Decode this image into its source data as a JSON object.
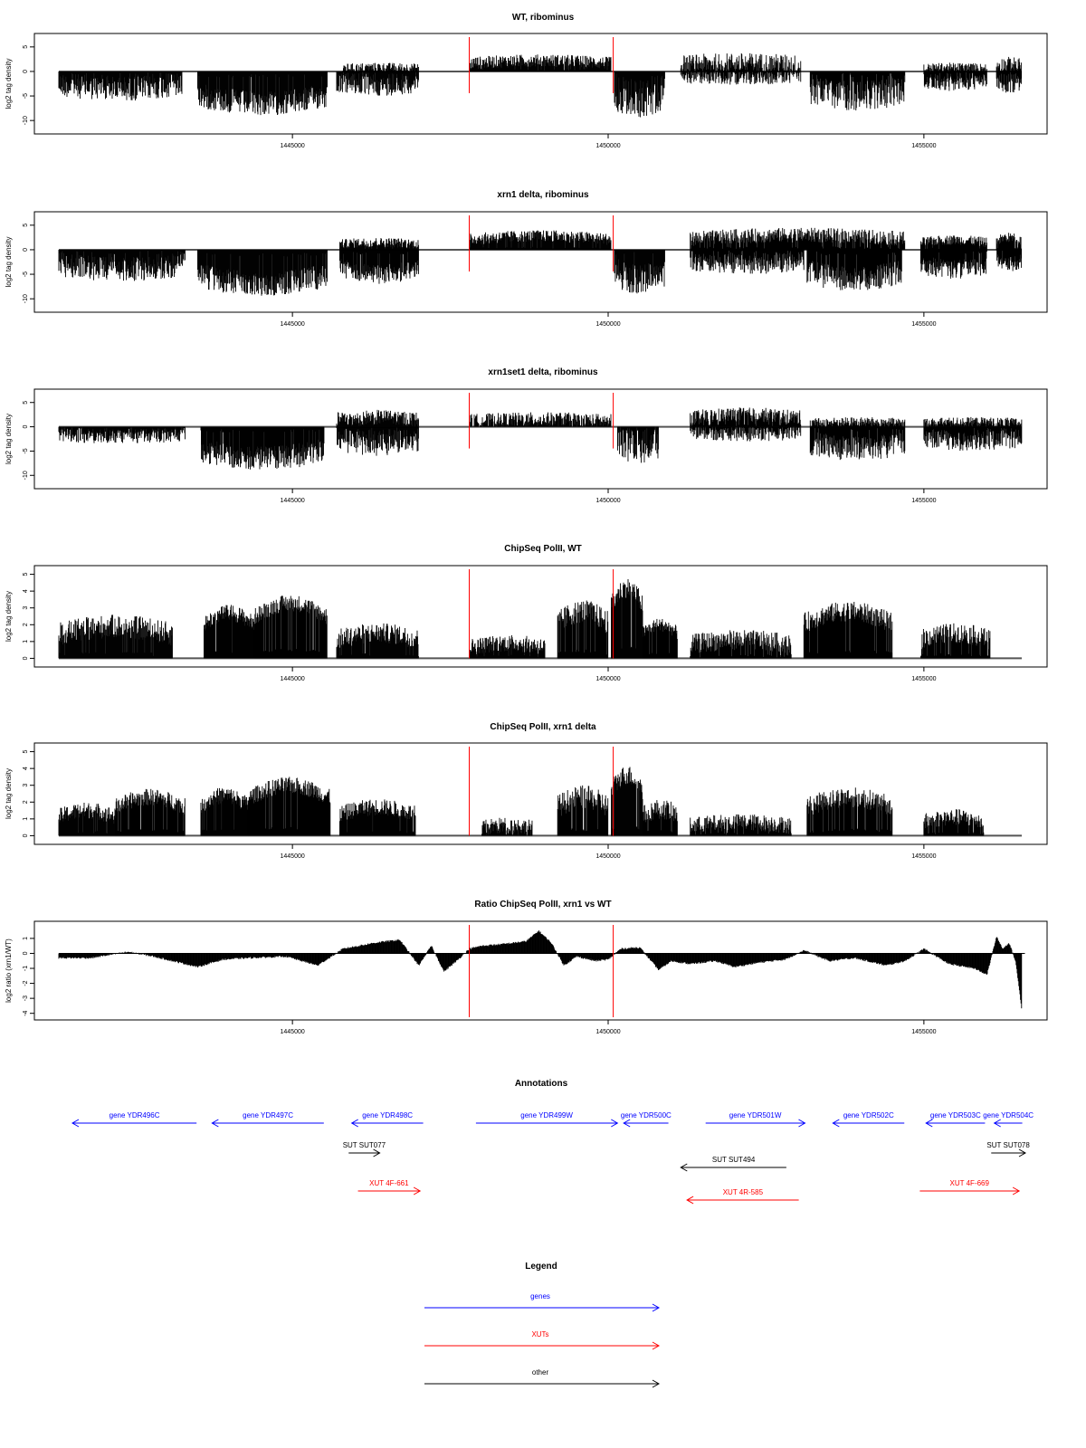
{
  "chart_data": [
    {
      "type": "bar",
      "title": "WT, ribominus",
      "ylabel": "log2 tag density",
      "xlim": [
        1441200,
        1456650
      ],
      "ylim": [
        -12,
        7
      ],
      "yticks": [
        5,
        0,
        -5,
        -10
      ],
      "xticks": [
        1445000,
        1450000,
        1455000
      ],
      "markers": [
        1447800,
        1450080
      ],
      "segments": [
        {
          "x": [
            1441300,
            1443250
          ],
          "sign": -1,
          "mean": 3.5,
          "spread": 2.5
        },
        {
          "x": [
            1443500,
            1445550
          ],
          "sign": -1,
          "mean": 6.5,
          "spread": 2.5
        },
        {
          "x": [
            1445700,
            1447000
          ],
          "sign": -1,
          "mean": 3.0,
          "spread": 2.0
        },
        {
          "x": [
            1445800,
            1447000
          ],
          "sign": 1,
          "mean": 0.8,
          "spread": 1.0
        },
        {
          "x": [
            1447800,
            1450050
          ],
          "sign": 1,
          "mean": 2.2,
          "spread": 1.3
        },
        {
          "x": [
            1450100,
            1450900
          ],
          "sign": -1,
          "mean": 5.5,
          "spread": 4.0
        },
        {
          "x": [
            1451150,
            1453050
          ],
          "sign": 1,
          "mean": 1.8,
          "spread": 2.0
        },
        {
          "x": [
            1451150,
            1453050
          ],
          "sign": -1,
          "mean": 1.2,
          "spread": 1.5
        },
        {
          "x": [
            1453200,
            1454700
          ],
          "sign": -1,
          "mean": 5.0,
          "spread": 3.0
        },
        {
          "x": [
            1455000,
            1456000
          ],
          "sign": -1,
          "mean": 2.5,
          "spread": 1.5
        },
        {
          "x": [
            1455000,
            1456000
          ],
          "sign": 1,
          "mean": 0.8,
          "spread": 1.0
        },
        {
          "x": [
            1456150,
            1456550
          ],
          "sign": 1,
          "mean": 1.5,
          "spread": 1.5
        },
        {
          "x": [
            1456150,
            1456550
          ],
          "sign": -1,
          "mean": 2.5,
          "spread": 2.0
        }
      ]
    },
    {
      "type": "bar",
      "title": "xrn1 delta, ribominus",
      "ylabel": "log2 tag density",
      "xlim": [
        1441200,
        1456650
      ],
      "ylim": [
        -12,
        7
      ],
      "yticks": [
        5,
        0,
        -5,
        -10
      ],
      "xticks": [
        1445000,
        1450000,
        1455000
      ],
      "markers": [
        1447800,
        1450080
      ],
      "segments": [
        {
          "x": [
            1441300,
            1443300
          ],
          "sign": -1,
          "mean": 4.0,
          "spread": 2.5
        },
        {
          "x": [
            1443500,
            1445550
          ],
          "sign": -1,
          "mean": 7.0,
          "spread": 2.5
        },
        {
          "x": [
            1445750,
            1447000
          ],
          "sign": -1,
          "mean": 5.0,
          "spread": 2.0
        },
        {
          "x": [
            1445750,
            1447000
          ],
          "sign": 1,
          "mean": 1.5,
          "spread": 1.0
        },
        {
          "x": [
            1447800,
            1450050
          ],
          "sign": 1,
          "mean": 2.8,
          "spread": 1.2
        },
        {
          "x": [
            1450100,
            1450900
          ],
          "sign": -1,
          "mean": 6.0,
          "spread": 3.0
        },
        {
          "x": [
            1451300,
            1454700
          ],
          "sign": 1,
          "mean": 3.0,
          "spread": 1.5
        },
        {
          "x": [
            1451300,
            1453100
          ],
          "sign": -1,
          "mean": 3.0,
          "spread": 2.0
        },
        {
          "x": [
            1453150,
            1454650
          ],
          "sign": -1,
          "mean": 6.0,
          "spread": 2.5
        },
        {
          "x": [
            1454950,
            1456000
          ],
          "sign": 1,
          "mean": 2.0,
          "spread": 1.0
        },
        {
          "x": [
            1454950,
            1456000
          ],
          "sign": -1,
          "mean": 4.0,
          "spread": 2.0
        },
        {
          "x": [
            1456150,
            1456550
          ],
          "sign": 1,
          "mean": 2.5,
          "spread": 1.0
        },
        {
          "x": [
            1456150,
            1456550
          ],
          "sign": -1,
          "mean": 3.0,
          "spread": 1.5
        }
      ]
    },
    {
      "type": "bar",
      "title": "xrn1set1 delta, ribominus",
      "ylabel": "log2 tag density",
      "xlim": [
        1441200,
        1456650
      ],
      "ylim": [
        -12,
        7
      ],
      "yticks": [
        5,
        0,
        -5,
        -10
      ],
      "xticks": [
        1445000,
        1450000,
        1455000
      ],
      "markers": [
        1447800,
        1450080
      ],
      "segments": [
        {
          "x": [
            1441300,
            1443300
          ],
          "sign": -1,
          "mean": 2.0,
          "spread": 1.5
        },
        {
          "x": [
            1443550,
            1445500
          ],
          "sign": -1,
          "mean": 6.5,
          "spread": 2.5
        },
        {
          "x": [
            1445700,
            1447000
          ],
          "sign": -1,
          "mean": 3.5,
          "spread": 2.5
        },
        {
          "x": [
            1445700,
            1447000
          ],
          "sign": 1,
          "mean": 2.0,
          "spread": 1.5
        },
        {
          "x": [
            1447800,
            1450050
          ],
          "sign": 1,
          "mean": 1.5,
          "spread": 1.5
        },
        {
          "x": [
            1450150,
            1450800
          ],
          "sign": -1,
          "mean": 4.0,
          "spread": 3.5
        },
        {
          "x": [
            1451300,
            1453050
          ],
          "sign": 1,
          "mean": 2.5,
          "spread": 1.5
        },
        {
          "x": [
            1451300,
            1453050
          ],
          "sign": -1,
          "mean": 1.5,
          "spread": 1.5
        },
        {
          "x": [
            1453200,
            1454700
          ],
          "sign": -1,
          "mean": 4.5,
          "spread": 2.5
        },
        {
          "x": [
            1453200,
            1454700
          ],
          "sign": 1,
          "mean": 1.0,
          "spread": 1.0
        },
        {
          "x": [
            1455000,
            1456550
          ],
          "sign": -1,
          "mean": 3.0,
          "spread": 2.0
        },
        {
          "x": [
            1455000,
            1456550
          ],
          "sign": 1,
          "mean": 1.0,
          "spread": 1.0
        }
      ]
    },
    {
      "type": "bar",
      "title": "ChipSeq PolII, WT",
      "ylabel": "log2 tag density",
      "xlim": [
        1441200,
        1456650
      ],
      "ylim": [
        -0.3,
        5.3
      ],
      "yticks": [
        0,
        1,
        2,
        3,
        4,
        5
      ],
      "xticks": [
        1445000,
        1450000,
        1455000
      ],
      "markers": [
        1447800,
        1450080
      ],
      "segments": [
        {
          "x": [
            1441300,
            1443100
          ],
          "sign": 1,
          "mean": 1.9,
          "spread": 0.7
        },
        {
          "x": [
            1443600,
            1444400
          ],
          "sign": 1,
          "mean": 2.7,
          "spread": 0.5
        },
        {
          "x": [
            1444400,
            1445550
          ],
          "sign": 1,
          "mean": 3.3,
          "spread": 0.5
        },
        {
          "x": [
            1445700,
            1447000
          ],
          "sign": 1,
          "mean": 1.5,
          "spread": 0.6
        },
        {
          "x": [
            1447800,
            1449000
          ],
          "sign": 1,
          "mean": 0.9,
          "spread": 0.5
        },
        {
          "x": [
            1449200,
            1450000
          ],
          "sign": 1,
          "mean": 2.8,
          "spread": 0.7
        },
        {
          "x": [
            1450050,
            1450550
          ],
          "sign": 1,
          "mean": 4.2,
          "spread": 0.6
        },
        {
          "x": [
            1450550,
            1451100
          ],
          "sign": 1,
          "mean": 2.0,
          "spread": 0.4
        },
        {
          "x": [
            1451300,
            1452900
          ],
          "sign": 1,
          "mean": 1.1,
          "spread": 0.6
        },
        {
          "x": [
            1453100,
            1454500
          ],
          "sign": 1,
          "mean": 2.8,
          "spread": 0.6
        },
        {
          "x": [
            1454950,
            1456050
          ],
          "sign": 1,
          "mean": 1.5,
          "spread": 0.6
        }
      ]
    },
    {
      "type": "bar",
      "title": "ChipSeq PolII, xrn1 delta",
      "ylabel": "log2 tag density",
      "xlim": [
        1441200,
        1456650
      ],
      "ylim": [
        -0.3,
        5.3
      ],
      "yticks": [
        0,
        1,
        2,
        3,
        4,
        5
      ],
      "xticks": [
        1445000,
        1450000,
        1455000
      ],
      "markers": [
        1447800,
        1450080
      ],
      "segments": [
        {
          "x": [
            1441300,
            1442200
          ],
          "sign": 1,
          "mean": 1.5,
          "spread": 0.5
        },
        {
          "x": [
            1442200,
            1443300
          ],
          "sign": 1,
          "mean": 2.3,
          "spread": 0.5
        },
        {
          "x": [
            1443550,
            1444300
          ],
          "sign": 1,
          "mean": 2.4,
          "spread": 0.5
        },
        {
          "x": [
            1444300,
            1445600
          ],
          "sign": 1,
          "mean": 3.0,
          "spread": 0.5
        },
        {
          "x": [
            1445750,
            1446950
          ],
          "sign": 1,
          "mean": 1.7,
          "spread": 0.5
        },
        {
          "x": [
            1448000,
            1448800
          ],
          "sign": 1,
          "mean": 0.6,
          "spread": 0.5
        },
        {
          "x": [
            1449200,
            1450000
          ],
          "sign": 1,
          "mean": 2.3,
          "spread": 0.7
        },
        {
          "x": [
            1450050,
            1450550
          ],
          "sign": 1,
          "mean": 3.6,
          "spread": 0.6
        },
        {
          "x": [
            1450550,
            1451100
          ],
          "sign": 1,
          "mean": 1.6,
          "spread": 0.6
        },
        {
          "x": [
            1451300,
            1452900
          ],
          "sign": 1,
          "mean": 0.8,
          "spread": 0.5
        },
        {
          "x": [
            1453150,
            1454500
          ],
          "sign": 1,
          "mean": 2.3,
          "spread": 0.6
        },
        {
          "x": [
            1455000,
            1455950
          ],
          "sign": 1,
          "mean": 1.1,
          "spread": 0.5
        }
      ]
    },
    {
      "type": "area",
      "title": "Ratio ChipSeq PolII, xrn1 vs WT",
      "ylabel": "log2 ratio (xrn1/WT)",
      "xlim": [
        1441200,
        1456650
      ],
      "ylim": [
        -4.2,
        1.9
      ],
      "yticks": [
        1,
        0,
        -1,
        -2,
        -3,
        -4
      ],
      "xticks": [
        1445000,
        1450000,
        1455000
      ],
      "markers": [
        1447800,
        1450080
      ],
      "x": [
        1441300,
        1441800,
        1442400,
        1442800,
        1443200,
        1443500,
        1443900,
        1444300,
        1444900,
        1445400,
        1445800,
        1446300,
        1446700,
        1447000,
        1447200,
        1447400,
        1447600,
        1447800,
        1448000,
        1448300,
        1448700,
        1448900,
        1449100,
        1449300,
        1449500,
        1449800,
        1450000,
        1450200,
        1450500,
        1450800,
        1451000,
        1451300,
        1451700,
        1452000,
        1452400,
        1452800,
        1453100,
        1453500,
        1453900,
        1454400,
        1454700,
        1455000,
        1455400,
        1455800,
        1456000,
        1456150,
        1456250,
        1456350,
        1456450,
        1456500,
        1456550
      ],
      "y": [
        -0.3,
        -0.3,
        0.1,
        -0.2,
        -0.6,
        -0.9,
        -0.4,
        -0.3,
        -0.2,
        -0.8,
        0.3,
        0.7,
        0.9,
        -0.8,
        0.5,
        -1.2,
        -0.5,
        0.3,
        0.5,
        0.6,
        0.8,
        1.5,
        0.7,
        -0.8,
        -0.2,
        -0.5,
        -0.4,
        0.3,
        0.4,
        -1.1,
        -0.5,
        -0.7,
        -0.5,
        -0.9,
        -0.6,
        -0.4,
        0.2,
        -0.5,
        -0.3,
        -0.8,
        -0.5,
        0.3,
        -0.7,
        -1.0,
        -1.4,
        1.1,
        0.3,
        0.7,
        -0.5,
        -2.0,
        -3.8
      ]
    }
  ],
  "annotations": {
    "title": "Annotations",
    "features": [
      {
        "label": "gene YDR496C",
        "kind": "gene",
        "strand": "-",
        "start": 1441300,
        "end": 1443300,
        "row": 0
      },
      {
        "label": "gene YDR497C",
        "kind": "gene",
        "strand": "-",
        "start": 1443550,
        "end": 1445350,
        "row": 0
      },
      {
        "label": "gene YDR498C",
        "kind": "gene",
        "strand": "-",
        "start": 1445800,
        "end": 1446950,
        "row": 0
      },
      {
        "label": "gene YDR499W",
        "kind": "gene",
        "strand": "+",
        "start": 1447800,
        "end": 1450080,
        "row": 0
      },
      {
        "label": "gene YDR500C",
        "kind": "gene",
        "strand": "-",
        "start": 1450180,
        "end": 1450900,
        "row": 0
      },
      {
        "label": "gene YDR501W",
        "kind": "gene",
        "strand": "+",
        "start": 1451500,
        "end": 1453100,
        "row": 0
      },
      {
        "label": "gene YDR502C",
        "kind": "gene",
        "strand": "-",
        "start": 1453550,
        "end": 1454700,
        "row": 0
      },
      {
        "label": "gene YDR503C",
        "kind": "gene",
        "strand": "-",
        "start": 1455050,
        "end": 1456000,
        "row": 0
      },
      {
        "label": "gene YDR504C",
        "kind": "gene",
        "strand": "-",
        "start": 1456150,
        "end": 1456600,
        "row": 0
      },
      {
        "label": "SUT SUT077",
        "kind": "other",
        "strand": "+",
        "start": 1445750,
        "end": 1446250,
        "row": 1
      },
      {
        "label": "SUT SUT494",
        "kind": "other",
        "strand": "-",
        "start": 1451100,
        "end": 1452800,
        "row": 2
      },
      {
        "label": "SUT SUT078",
        "kind": "other",
        "strand": "+",
        "start": 1456100,
        "end": 1456650,
        "row": 1
      },
      {
        "label": "XUT 4F-661",
        "kind": "xut",
        "strand": "+",
        "start": 1445900,
        "end": 1446900,
        "row": 3
      },
      {
        "label": "XUT 4R-585",
        "kind": "xut",
        "strand": "-",
        "start": 1451200,
        "end": 1453000,
        "row": 4
      },
      {
        "label": "XUT 4F-669",
        "kind": "xut",
        "strand": "+",
        "start": 1454950,
        "end": 1456550,
        "row": 3
      }
    ]
  },
  "legend": {
    "title": "Legend",
    "items": [
      {
        "label": "genes",
        "color": "#0000ff"
      },
      {
        "label": "XUTs",
        "color": "#ff0000"
      },
      {
        "label": "other",
        "color": "#000000"
      }
    ]
  },
  "colors": {
    "marker": "#ff0000",
    "bars": "#000000",
    "axis": "#000000",
    "gene": "#0000ff",
    "xut": "#ff0000",
    "other": "#000000"
  }
}
